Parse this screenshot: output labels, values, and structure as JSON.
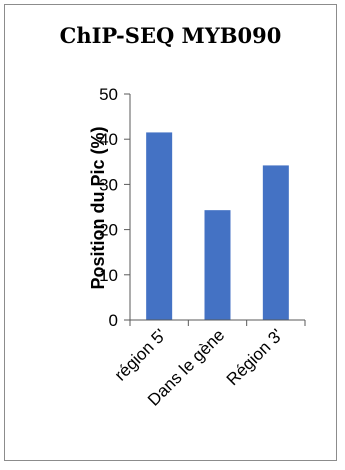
{
  "chart_data": {
    "type": "bar",
    "title": "ChIP-SEQ MYB090",
    "xlabel": "",
    "ylabel": "Position du Pic (%)",
    "categories": [
      "région 5'",
      "Dans le gène",
      "Région 3'"
    ],
    "values": [
      41.5,
      24.3,
      34.2
    ],
    "ylim": [
      0,
      50
    ],
    "yticks": [
      0,
      10,
      20,
      30,
      40,
      50
    ],
    "grid": false,
    "legend": "none",
    "bar_color": "#4472C4",
    "axis_color": "#595959"
  }
}
